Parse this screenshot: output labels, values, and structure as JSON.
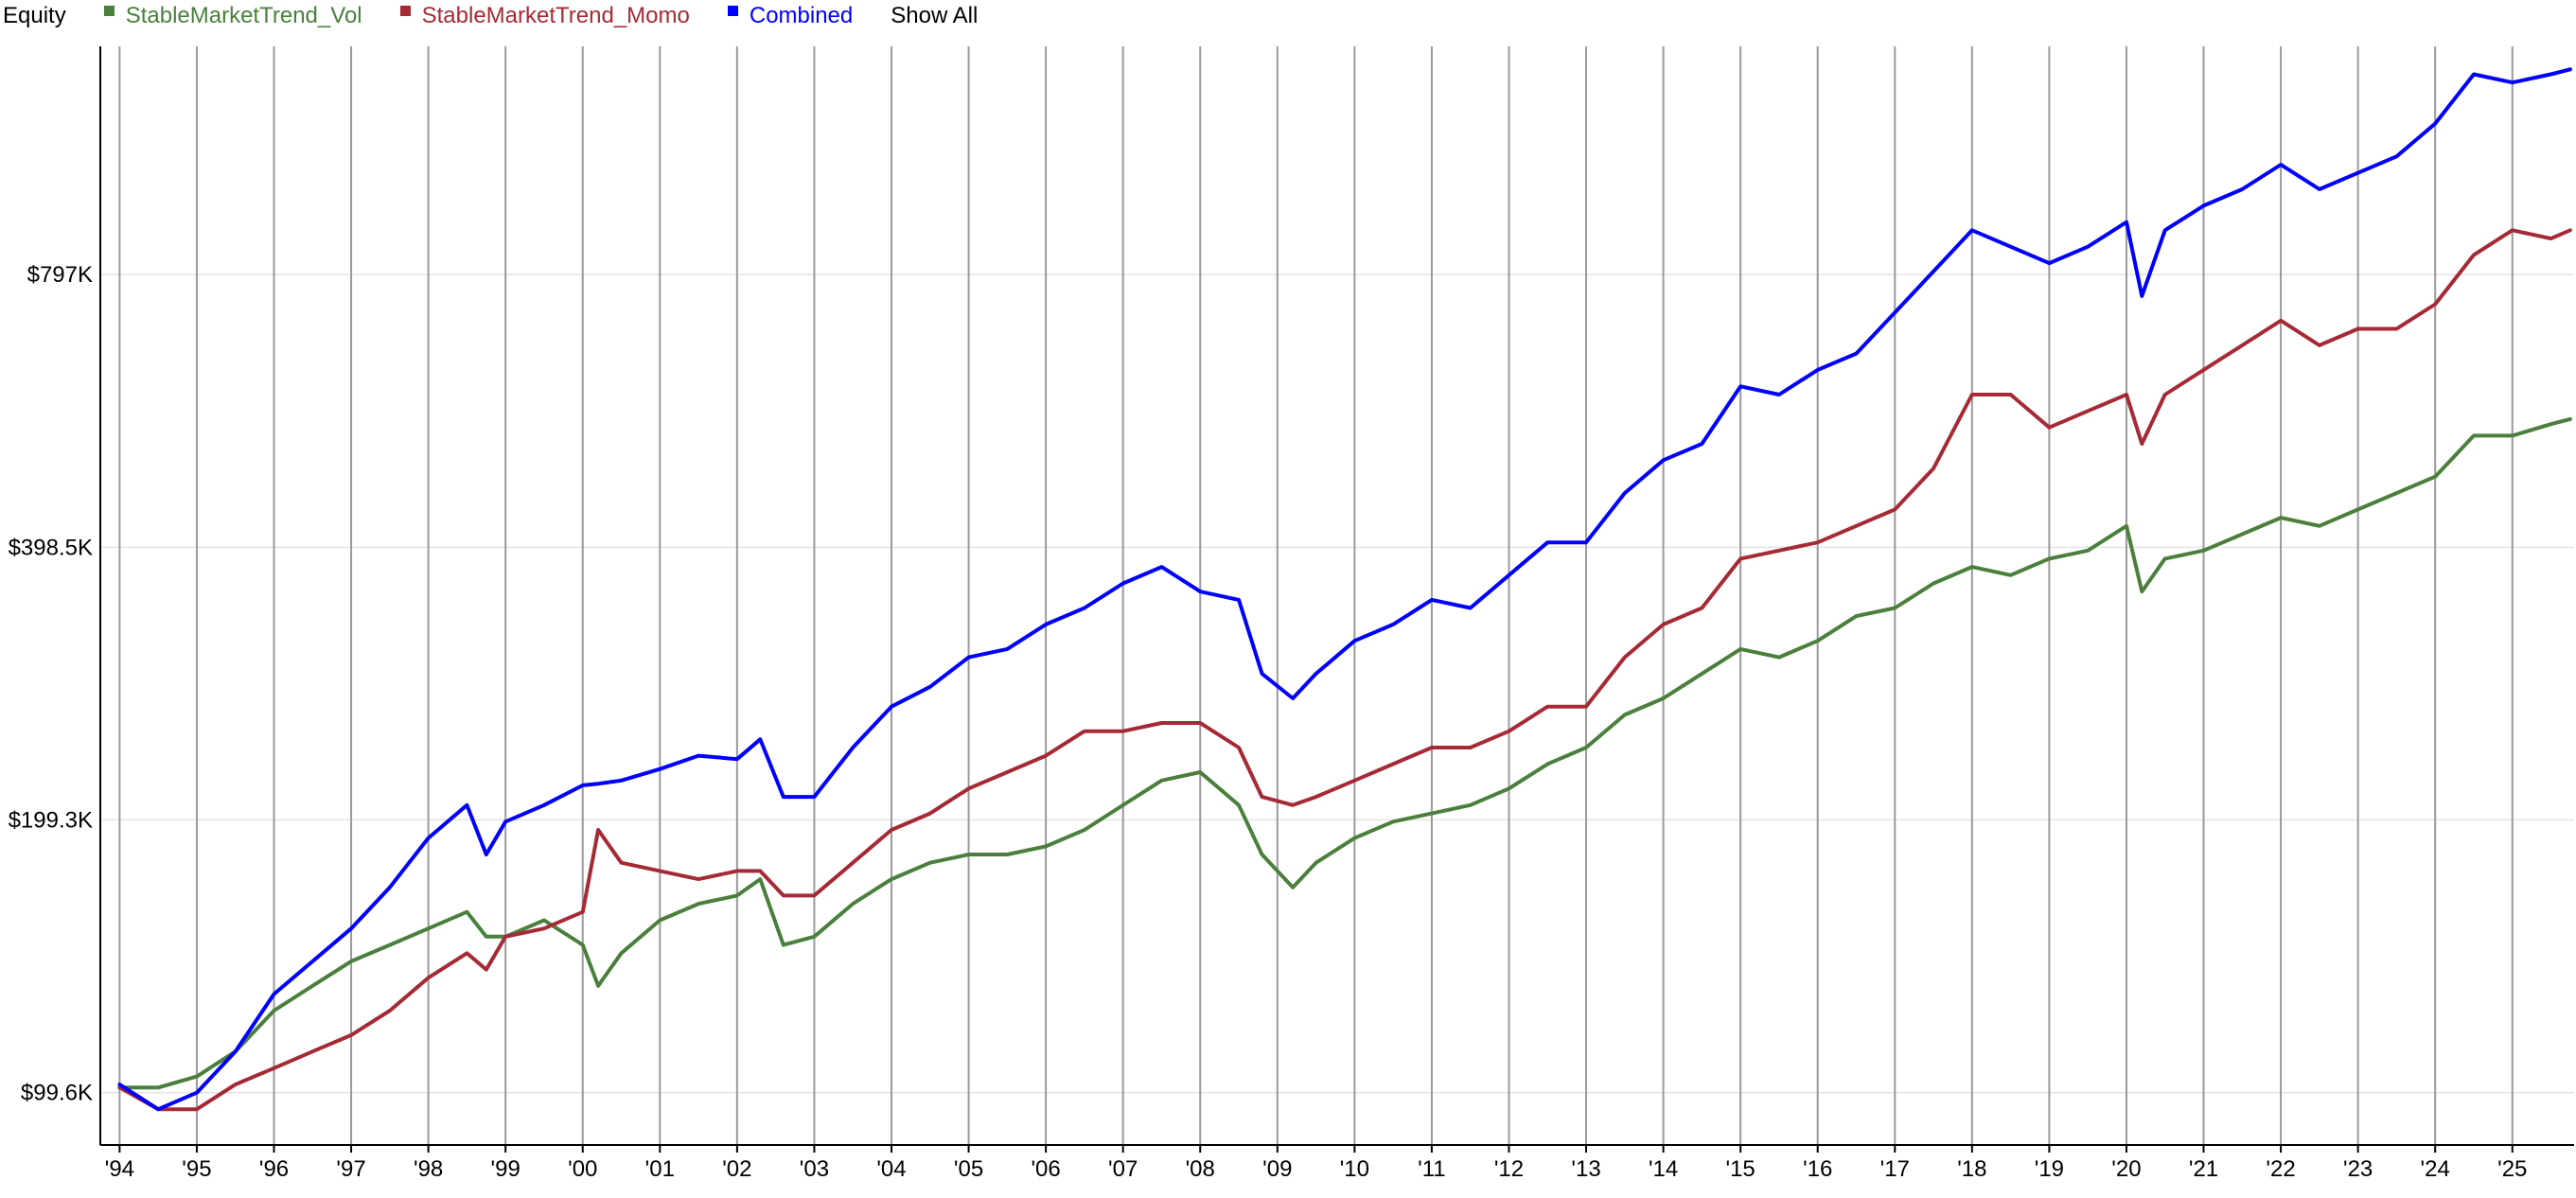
{
  "chart_data": {
    "type": "line",
    "title": "Equity",
    "show_all_label": "Show All",
    "log_scale": true,
    "grid": true,
    "x": [
      1994,
      1994.5,
      1995,
      1995.5,
      1996,
      1996.5,
      1997,
      1997.5,
      1998,
      1998.5,
      1998.75,
      1999,
      1999.5,
      2000,
      2000.2,
      2000.5,
      2001,
      2001.5,
      2002,
      2002.3,
      2002.6,
      2003,
      2003.5,
      2004,
      2004.5,
      2005,
      2005.5,
      2006,
      2006.5,
      2007,
      2007.5,
      2008,
      2008.5,
      2008.8,
      2009.2,
      2009.5,
      2010,
      2010.5,
      2011,
      2011.5,
      2012,
      2012.5,
      2013,
      2013.5,
      2014,
      2014.5,
      2015,
      2015.5,
      2016,
      2016.5,
      2017,
      2017.5,
      2018,
      2018.5,
      2019,
      2019.5,
      2020,
      2020.2,
      2020.5,
      2021,
      2021.5,
      2022,
      2022.5,
      2023,
      2023.5,
      2024,
      2024.5,
      2025,
      2025.5,
      2025.75
    ],
    "xlim": [
      1993.75,
      2025.8
    ],
    "xticks": [
      {
        "value": 1994,
        "label": "'94"
      },
      {
        "value": 1995,
        "label": "'95"
      },
      {
        "value": 1996,
        "label": "'96"
      },
      {
        "value": 1997,
        "label": "'97"
      },
      {
        "value": 1998,
        "label": "'98"
      },
      {
        "value": 1999,
        "label": "'99"
      },
      {
        "value": 2000,
        "label": "'00"
      },
      {
        "value": 2001,
        "label": "'01"
      },
      {
        "value": 2002,
        "label": "'02"
      },
      {
        "value": 2003,
        "label": "'03"
      },
      {
        "value": 2004,
        "label": "'04"
      },
      {
        "value": 2005,
        "label": "'05"
      },
      {
        "value": 2006,
        "label": "'06"
      },
      {
        "value": 2007,
        "label": "'07"
      },
      {
        "value": 2008,
        "label": "'08"
      },
      {
        "value": 2009,
        "label": "'09"
      },
      {
        "value": 2010,
        "label": "'10"
      },
      {
        "value": 2011,
        "label": "'11"
      },
      {
        "value": 2012,
        "label": "'12"
      },
      {
        "value": 2013,
        "label": "'13"
      },
      {
        "value": 2014,
        "label": "'14"
      },
      {
        "value": 2015,
        "label": "'15"
      },
      {
        "value": 2016,
        "label": "'16"
      },
      {
        "value": 2017,
        "label": "'17"
      },
      {
        "value": 2018,
        "label": "'18"
      },
      {
        "value": 2019,
        "label": "'19"
      },
      {
        "value": 2020,
        "label": "'20"
      },
      {
        "value": 2021,
        "label": "'21"
      },
      {
        "value": 2022,
        "label": "'22"
      },
      {
        "value": 2023,
        "label": "'23"
      },
      {
        "value": 2024,
        "label": "'24"
      },
      {
        "value": 2025,
        "label": "'25"
      }
    ],
    "ylim": [
      87200,
      1424000
    ],
    "yticks": [
      {
        "value": 99600,
        "label": "$99.6K"
      },
      {
        "value": 199300,
        "label": "$199.3K"
      },
      {
        "value": 398500,
        "label": "$398.5K"
      },
      {
        "value": 797000,
        "label": "$797K"
      }
    ],
    "series": [
      {
        "name": "StableMarketTrend_Vol",
        "color": "#4a7f3c",
        "values": [
          100900,
          100900,
          103800,
          110600,
          122700,
          130700,
          139100,
          145000,
          151200,
          157700,
          148100,
          148100,
          154400,
          145000,
          130700,
          142000,
          154400,
          161000,
          164400,
          171400,
          145000,
          148100,
          161000,
          171400,
          178700,
          182500,
          182500,
          186300,
          194300,
          206900,
          220300,
          225000,
          206900,
          182500,
          167900,
          178700,
          190300,
          198400,
          202600,
          206900,
          215800,
          229700,
          239500,
          260300,
          271400,
          289000,
          307700,
          301300,
          314200,
          334500,
          341500,
          363600,
          379100,
          371300,
          387100,
          395200,
          420700,
          356100,
          387100,
          395200,
          412000,
          429600,
          420700,
          438700,
          457400,
          476900,
          529300,
          529300,
          545000,
          552000
        ]
      },
      {
        "name": "StableMarketTrend_Momo",
        "color": "#a52a35",
        "values": [
          100900,
          95500,
          95500,
          101700,
          106000,
          110600,
          115300,
          122700,
          133400,
          142000,
          136200,
          148100,
          151200,
          157700,
          194300,
          178700,
          175000,
          171400,
          175000,
          175000,
          164400,
          164400,
          178700,
          194300,
          202600,
          215800,
          225000,
          234600,
          249700,
          249700,
          255000,
          255000,
          239500,
          211300,
          206900,
          211300,
          220300,
          229700,
          239500,
          239500,
          249700,
          265800,
          265800,
          301300,
          327500,
          341500,
          387100,
          395200,
          403500,
          420700,
          438700,
          487000,
          587600,
          587600,
          540500,
          563600,
          587600,
          518400,
          587600,
          625600,
          666000,
          709100,
          666000,
          694400,
          694400,
          739300,
          838000,
          892200,
          873700,
          892200
        ]
      },
      {
        "name": "Combined",
        "color": "#0000ff",
        "values": [
          101700,
          95500,
          99600,
          110600,
          128000,
          139100,
          151200,
          167900,
          190300,
          206900,
          182500,
          198400,
          206900,
          217600,
          218500,
          220300,
          226800,
          234600,
          232600,
          244600,
          211300,
          211300,
          239500,
          265800,
          279500,
          301300,
          307700,
          327500,
          341500,
          363600,
          379100,
          356100,
          348700,
          289000,
          271400,
          289000,
          314200,
          327500,
          348700,
          341500,
          371300,
          403500,
          403500,
          457400,
          497300,
          518400,
          600000,
          587600,
          625600,
          652200,
          724000,
          803700,
          892200,
          855700,
          820700,
          855700,
          911000,
          754800,
          892200,
          949700,
          990300,
          1054300,
          990300,
          1032400,
          1076500,
          1170200,
          1326400,
          1299100,
          1326400,
          1343200
        ]
      }
    ]
  }
}
